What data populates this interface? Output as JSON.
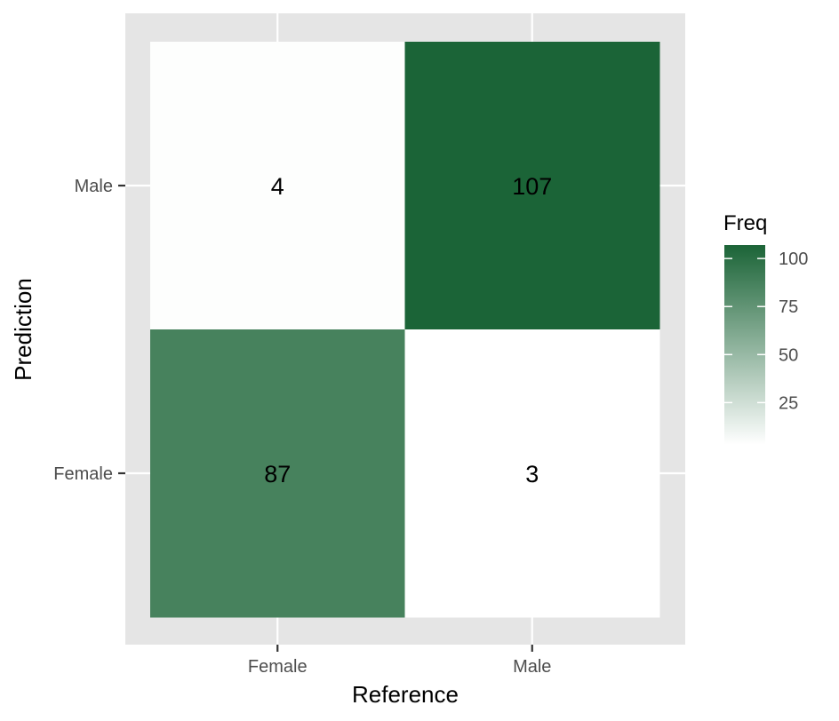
{
  "chart_data": {
    "type": "heatmap",
    "xlabel": "Reference",
    "ylabel": "Prediction",
    "x_categories": [
      "Female",
      "Male"
    ],
    "y_categories": [
      "Female",
      "Male"
    ],
    "cells": [
      {
        "x": "Female",
        "y": "Male",
        "value": 4
      },
      {
        "x": "Male",
        "y": "Male",
        "value": 107
      },
      {
        "x": "Female",
        "y": "Female",
        "value": 87
      },
      {
        "x": "Male",
        "y": "Female",
        "value": 3
      }
    ],
    "legend": {
      "title": "Freq",
      "ticks": [
        25,
        50,
        75,
        100
      ],
      "tick_labels": [
        "25",
        "50",
        "75",
        "100"
      ],
      "low_color": "#ffffff",
      "high_color": "#1b6437",
      "placement": "right"
    },
    "panel_background": "#e5e5e5",
    "grid": true
  }
}
